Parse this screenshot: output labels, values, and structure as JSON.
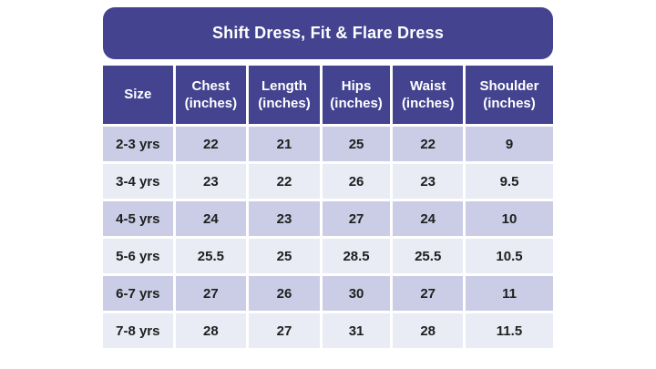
{
  "title": "Shift Dress, Fit & Flare Dress",
  "colors": {
    "header_bg": "#434390",
    "row_odd_bg": "#CACDE5",
    "row_even_bg": "#E9EBF5",
    "title_text": "#FFFFFF",
    "cell_text": "#1F1F1F",
    "canvas_bg": "#FFFFFF"
  },
  "chart_data": {
    "type": "table",
    "title": "Shift Dress, Fit & Flare Dress",
    "columns": [
      "Size",
      "Chest\n(inches)",
      "Length\n(inches)",
      "Hips\n(inches)",
      "Waist\n(inches)",
      "Shoulder\n(inches)"
    ],
    "column_keys": [
      "size",
      "chest",
      "length",
      "hips",
      "waist",
      "shoulder"
    ],
    "rows": [
      [
        "2-3 yrs",
        "22",
        "21",
        "25",
        "22",
        "9"
      ],
      [
        "3-4 yrs",
        "23",
        "22",
        "26",
        "23",
        "9.5"
      ],
      [
        "4-5 yrs",
        "24",
        "23",
        "27",
        "24",
        "10"
      ],
      [
        "5-6 yrs",
        "25.5",
        "25",
        "28.5",
        "25.5",
        "10.5"
      ],
      [
        "6-7 yrs",
        "27",
        "26",
        "30",
        "27",
        "11"
      ],
      [
        "7-8 yrs",
        "28",
        "27",
        "31",
        "28",
        "11.5"
      ]
    ],
    "layout": {
      "alternating_rows": true,
      "first_data_row_shade": "odd-darker",
      "header_position": "top",
      "grid": "white 3px separators"
    }
  }
}
